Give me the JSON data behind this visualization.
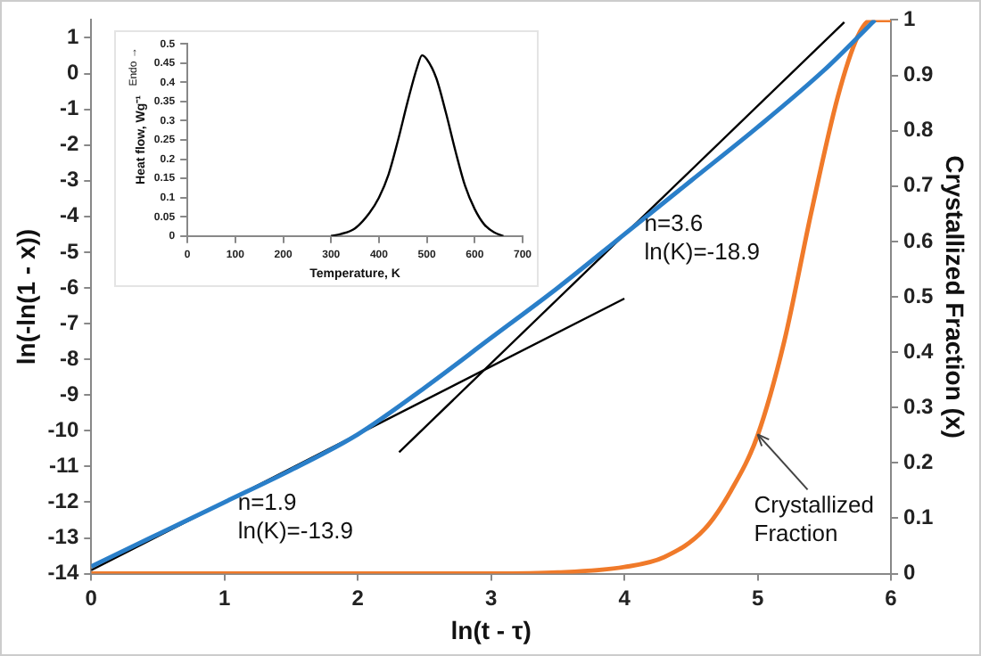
{
  "chart_data": [
    {
      "type": "line",
      "xlabel": "ln(t - τ)",
      "ylabel": "ln(-ln(1 - x))",
      "y2label": "Crystallized Fraction (x)",
      "xlim": [
        0,
        6
      ],
      "xticks": [
        0,
        1,
        2,
        3,
        4,
        5,
        6
      ],
      "ylim": [
        -14,
        1.5
      ],
      "yticks": [
        -14,
        -13,
        -12,
        -11,
        -10,
        -9,
        -8,
        -7,
        -6,
        -5,
        -4,
        -3,
        -2,
        -1,
        0,
        1
      ],
      "y2lim": [
        0,
        1
      ],
      "y2ticks": [
        0,
        0.1,
        0.2,
        0.3,
        0.4,
        0.5,
        0.6,
        0.7,
        0.8,
        0.9,
        1
      ],
      "grid": false,
      "legend": false,
      "marker": "none",
      "line_style": "solid",
      "series": [
        {
          "color": "#2a7fc9",
          "x": [
            0,
            0.5,
            1,
            1.5,
            2,
            2.5,
            3,
            3.5,
            4,
            4.5,
            5,
            5.5,
            5.8,
            5.88
          ],
          "values": [
            -13.8,
            -12.9,
            -12.0,
            -11.1,
            -10.1,
            -8.8,
            -7.4,
            -6.0,
            -4.5,
            -3.0,
            -1.5,
            0.1,
            1.2,
            1.5
          ]
        },
        {
          "color": "#000000",
          "x": [
            0,
            4
          ],
          "values": [
            -13.9,
            -6.3
          ]
        },
        {
          "color": "#000000",
          "x": [
            2.31,
            5.65
          ],
          "values": [
            -10.6,
            1.44
          ]
        },
        {
          "color": "#f07a2a",
          "axis": "y2",
          "x": [
            0,
            3,
            3.5,
            4,
            4.3,
            4.6,
            4.8,
            5,
            5.2,
            5.4,
            5.6,
            5.75,
            5.85,
            6
          ],
          "values": [
            0,
            0,
            0.002,
            0.012,
            0.03,
            0.08,
            0.15,
            0.25,
            0.42,
            0.65,
            0.86,
            0.97,
            1,
            1
          ]
        }
      ],
      "annotations": [
        {
          "text": "n=1.9\nln(K)=-13.9",
          "x": 1.1,
          "y": -11.7
        },
        {
          "text": "n=3.6\nln(K)=-18.9",
          "x": 4.15,
          "y": -3.9
        },
        {
          "text": "Crystallized\nFraction",
          "x": 5.0,
          "y": -10.1
        }
      ]
    },
    {
      "type": "line",
      "xlabel": "Temperature, K",
      "ylabel": "Heat flow, Wg⁻¹",
      "xlim": [
        0,
        700
      ],
      "xticks": [
        0,
        100,
        200,
        300,
        400,
        500,
        600,
        700
      ],
      "ylim": [
        0,
        0.5
      ],
      "yticks": [
        0,
        0.05,
        0.1,
        0.15,
        0.2,
        0.25,
        0.3,
        0.35,
        0.4,
        0.45,
        0.5
      ],
      "grid": false,
      "legend": false,
      "marker": "none",
      "line_style": "solid",
      "series": [
        {
          "color": "#000000",
          "x": [
            300,
            320,
            350,
            380,
            400,
            420,
            440,
            460,
            480,
            490,
            500,
            520,
            540,
            560,
            580,
            600,
            620,
            640,
            660
          ],
          "values": [
            0,
            0.005,
            0.02,
            0.06,
            0.1,
            0.16,
            0.25,
            0.35,
            0.44,
            0.47,
            0.46,
            0.41,
            0.32,
            0.22,
            0.13,
            0.07,
            0.03,
            0.01,
            0
          ]
        }
      ],
      "annotations": [
        "Endo →"
      ]
    }
  ]
}
